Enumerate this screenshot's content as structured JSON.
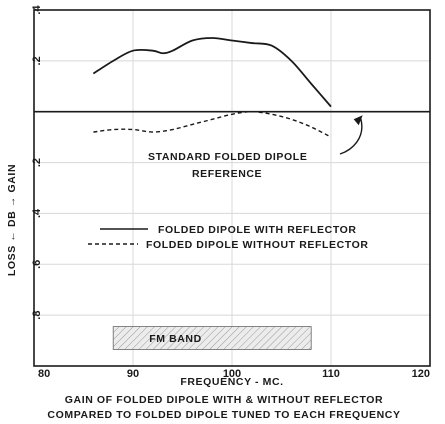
{
  "chart_data": {
    "type": "line",
    "xlabel": "FREQUENCY - MC.",
    "ylabel": "LOSS ← DB → GAIN",
    "xlim": [
      80,
      120
    ],
    "ylim": [
      -1.0,
      0.4
    ],
    "x_ticks": [
      80,
      90,
      100,
      110,
      120
    ],
    "x_tick_labels": [
      "80",
      "90",
      "100",
      "110",
      "120"
    ],
    "y_ticks": [
      0.4,
      0.2,
      -0.2,
      -0.4,
      -0.6,
      -0.8
    ],
    "y_tick_labels": [
      ".4",
      ".2",
      ".2",
      ".4",
      ".6",
      ".8"
    ],
    "grid": true,
    "reference_line": 0,
    "series": [
      {
        "name": "FOLDED DIPOLE WITH REFLECTOR",
        "style": "solid",
        "x": [
          86,
          88,
          90,
          92,
          93,
          94,
          96,
          98,
          100,
          102,
          104,
          106,
          108,
          110
        ],
        "y": [
          0.15,
          0.2,
          0.24,
          0.24,
          0.23,
          0.24,
          0.28,
          0.29,
          0.28,
          0.27,
          0.26,
          0.2,
          0.11,
          0.02
        ]
      },
      {
        "name": "FOLDED DIPOLE WITHOUT REFLECTOR",
        "style": "dashed",
        "x": [
          86,
          88,
          90,
          92,
          94,
          96,
          98,
          100,
          102,
          104,
          106,
          108,
          110
        ],
        "y": [
          -0.08,
          -0.07,
          -0.07,
          -0.08,
          -0.07,
          -0.05,
          -0.03,
          -0.01,
          0.0,
          -0.01,
          -0.03,
          -0.06,
          -0.1
        ]
      }
    ],
    "band": {
      "label": "FM BAND",
      "x_range": [
        88,
        108
      ]
    },
    "annotation": {
      "lines": [
        "STANDARD FOLDED DIPOLE",
        "REFERENCE"
      ],
      "arrow_to": {
        "x": 113,
        "y": 0.0
      }
    },
    "legend_placement": "center",
    "caption": [
      "GAIN OF FOLDED DIPOLE WITH & WITHOUT REFLECTOR",
      "COMPARED TO FOLDED DIPOLE TUNED TO EACH FREQUENCY"
    ],
    "colors": {
      "ink": "#1a1a1a",
      "grid": "#d8d8d8",
      "band_fill": "#e8e8e8"
    }
  }
}
